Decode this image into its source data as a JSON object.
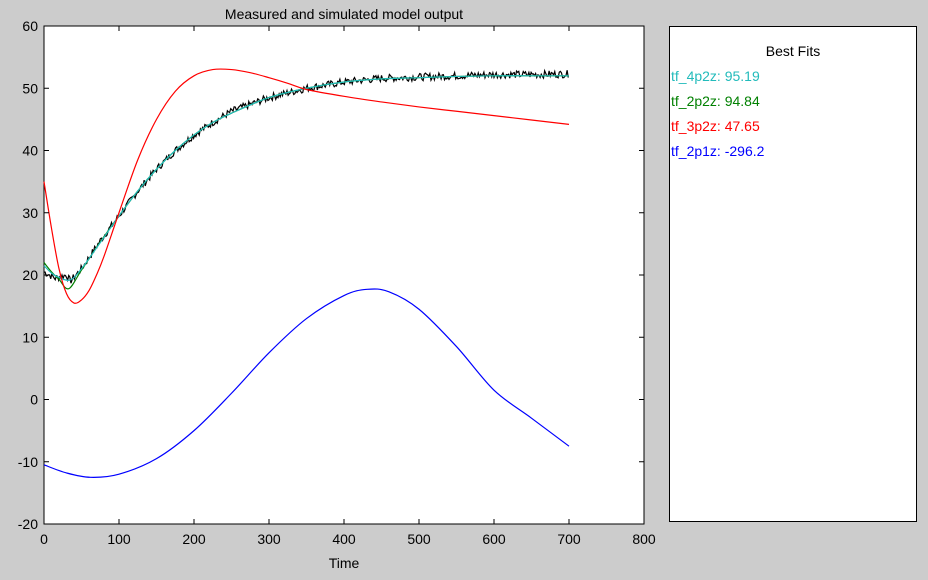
{
  "colors": {
    "background": "#cccccc",
    "plot_bg": "#ffffff",
    "measured": "#000000",
    "tf_4p2z": "#22bbbb",
    "tf_2p2z": "#008000",
    "tf_3p2z": "#ff0000",
    "tf_2p1z": "#0000ff"
  },
  "chart_data": {
    "type": "line",
    "title": "Measured and simulated model output",
    "xlabel": "Time",
    "ylabel": "",
    "xlim": [
      0,
      800
    ],
    "ylim": [
      -20,
      60
    ],
    "xticks": [
      "0",
      "100",
      "200",
      "300",
      "400",
      "500",
      "600",
      "700",
      "800"
    ],
    "yticks": [
      "-20",
      "-10",
      "0",
      "10",
      "20",
      "30",
      "40",
      "50",
      "60"
    ],
    "grid": false,
    "legend": {
      "title": "Best Fits",
      "placement": "right-panel",
      "entries": [
        {
          "label": "tf_4p2z: 95.19",
          "color": "#22bbbb"
        },
        {
          "label": "tf_2p2z: 94.84",
          "color": "#008000"
        },
        {
          "label": "tf_3p2z: 47.65",
          "color": "#ff0000"
        },
        {
          "label": "tf_2p1z: -296.2",
          "color": "#0000ff"
        }
      ]
    },
    "series": [
      {
        "key": "measured",
        "color": "#000000",
        "noise": 0.6,
        "x": [
          0,
          15,
          30,
          35,
          50,
          75,
          100,
          125,
          150,
          175,
          200,
          225,
          250,
          300,
          350,
          400,
          450,
          500,
          550,
          600,
          650,
          700
        ],
        "y": [
          20.5,
          19.5,
          20.0,
          19.0,
          21.0,
          25.5,
          29.5,
          33.5,
          37.0,
          40.0,
          42.5,
          44.5,
          46.3,
          48.5,
          50.0,
          51.0,
          51.6,
          51.8,
          52.0,
          52.2,
          52.2,
          52.3
        ]
      },
      {
        "name": "tf_4p2z",
        "color": "#22bbbb",
        "x": [
          0,
          10,
          20,
          35,
          50,
          75,
          100,
          125,
          150,
          175,
          200,
          225,
          250,
          300,
          350,
          400,
          450,
          500,
          550,
          600,
          650,
          700
        ],
        "y": [
          21.5,
          20.3,
          19.6,
          19.2,
          21.0,
          25.2,
          29.5,
          33.5,
          37.0,
          40.0,
          42.5,
          44.5,
          46.0,
          48.5,
          50.0,
          51.0,
          51.5,
          51.7,
          51.9,
          52.0,
          52.0,
          52.0
        ]
      },
      {
        "name": "tf_2p2z",
        "color": "#008000",
        "x": [
          0,
          10,
          20,
          33,
          50,
          75,
          100,
          125,
          150,
          175,
          200,
          225,
          250,
          300,
          350,
          400,
          450,
          500,
          550,
          600,
          650,
          700
        ],
        "y": [
          22.0,
          20.5,
          19.3,
          17.8,
          20.8,
          25.3,
          29.5,
          33.5,
          37.0,
          40.0,
          42.5,
          44.5,
          46.0,
          48.5,
          50.0,
          51.0,
          51.5,
          51.7,
          51.9,
          52.0,
          52.0,
          52.0
        ]
      },
      {
        "name": "tf_3p2z",
        "color": "#ff0000",
        "x": [
          0,
          10,
          20,
          30,
          40,
          50,
          60,
          70,
          80,
          100,
          125,
          150,
          175,
          200,
          225,
          250,
          275,
          300,
          325,
          350,
          400,
          450,
          500,
          550,
          600,
          650,
          700
        ],
        "y": [
          35.0,
          27.5,
          21.0,
          17.0,
          15.5,
          16.0,
          17.5,
          20.0,
          23.0,
          30.0,
          38.5,
          45.0,
          49.5,
          52.0,
          53.0,
          53.0,
          52.5,
          51.7,
          50.8,
          49.8,
          48.7,
          47.8,
          47.0,
          46.3,
          45.6,
          44.9,
          44.2
        ]
      },
      {
        "name": "tf_2p1z",
        "color": "#0000ff",
        "x": [
          0,
          30,
          62,
          100,
          150,
          200,
          250,
          300,
          350,
          400,
          431,
          460,
          500,
          550,
          600,
          650,
          700
        ],
        "y": [
          -10.5,
          -11.8,
          -12.5,
          -12.0,
          -9.5,
          -5.0,
          1.0,
          7.5,
          13.0,
          16.7,
          17.7,
          17.3,
          14.5,
          8.5,
          1.5,
          -3.0,
          -7.5
        ]
      }
    ]
  }
}
